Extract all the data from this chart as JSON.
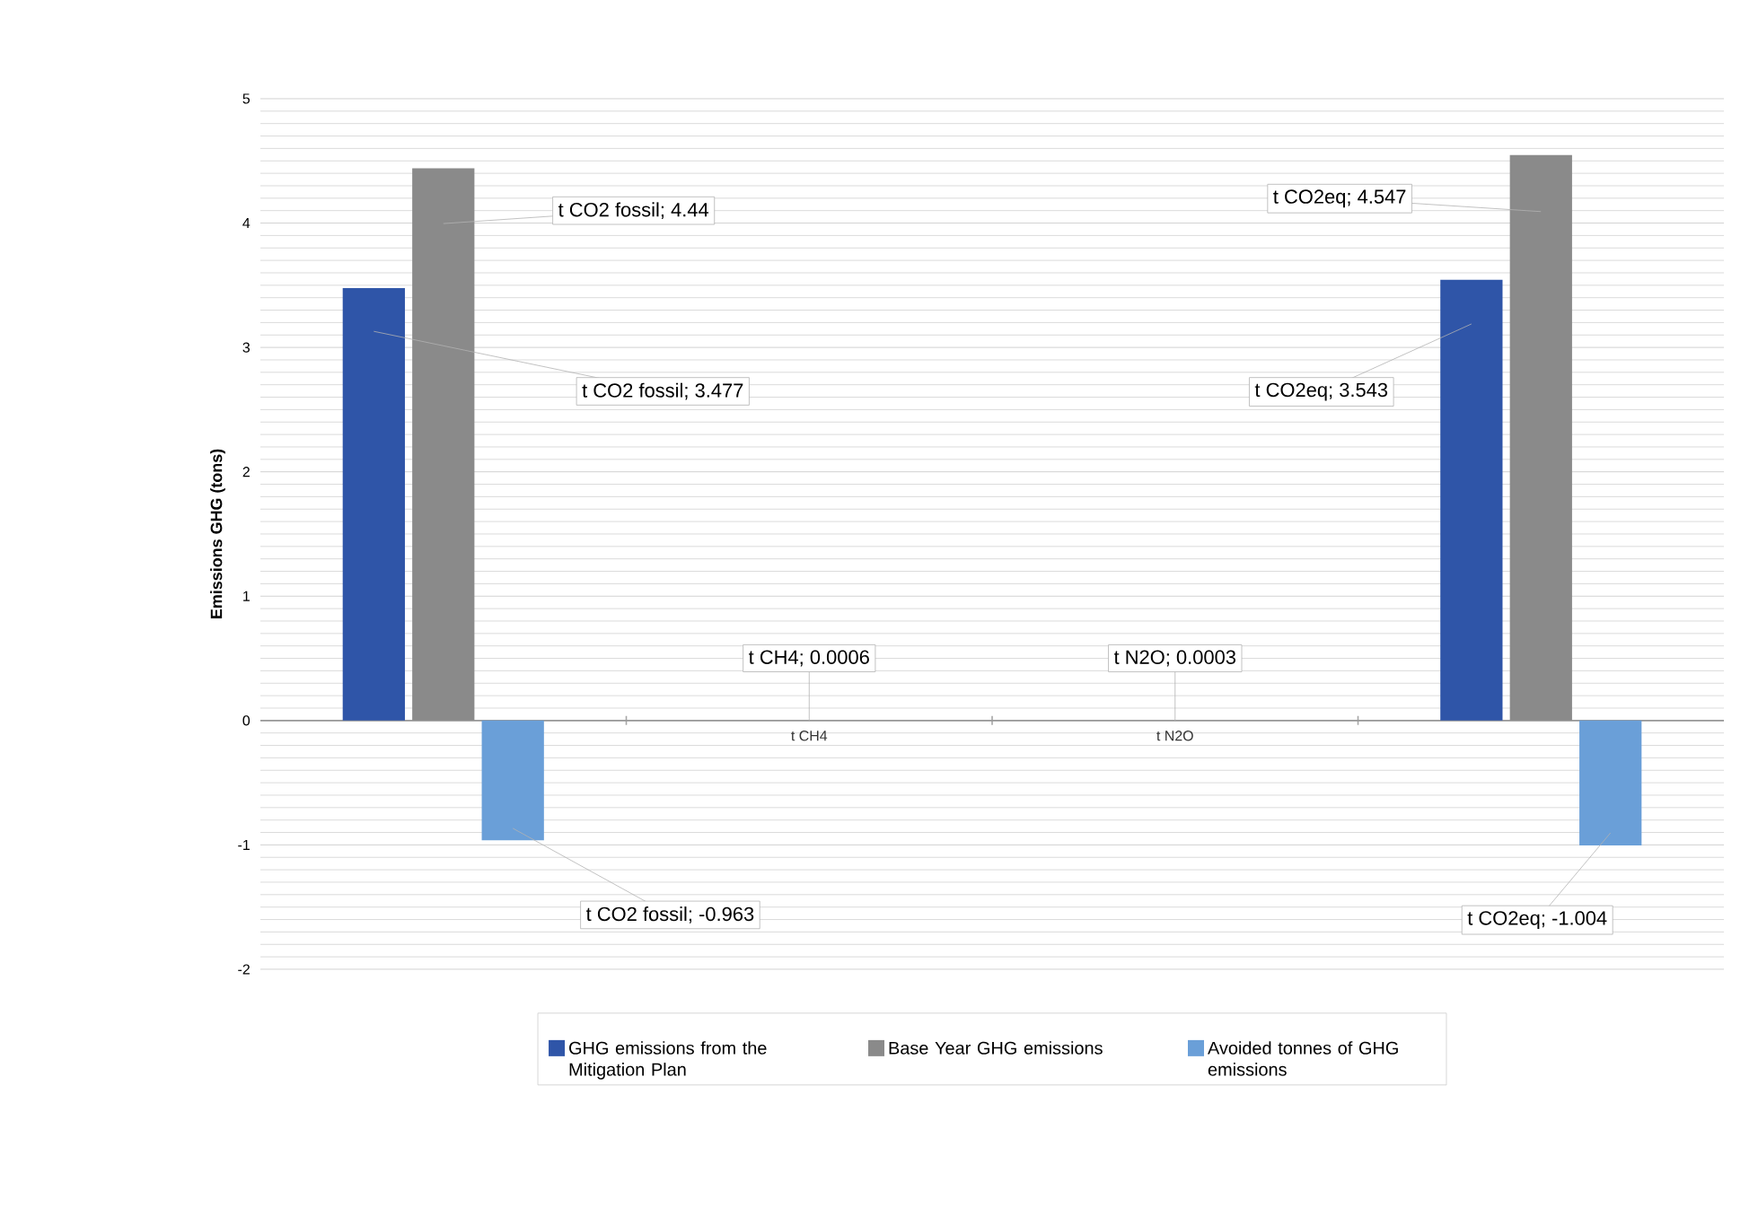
{
  "chart_data": {
    "type": "bar",
    "ylabel": "Emissions  GHG  (tons)",
    "categories": [
      null,
      "t CH4",
      "t N2O",
      null
    ],
    "series": [
      {
        "name": "GHG emissions from the Mitigation Plan",
        "color": "#2f55a8",
        "values": [
          3.477,
          null,
          null,
          3.543
        ],
        "value_labels": [
          "t CO2 fossil; 3.477",
          null,
          null,
          "t CO2eq; 3.543"
        ]
      },
      {
        "name": "Base Year GHG emissions",
        "color": "#8a8a8a",
        "values": [
          4.44,
          0.0006,
          0.0003,
          4.547
        ],
        "value_labels": [
          "t CO2 fossil; 4.44",
          "t CH4; 0.0006",
          "t N2O; 0.0003",
          "t CO2eq; 4.547"
        ]
      },
      {
        "name": "Avoided tonnes of GHG emissions",
        "color": "#6a9fd8",
        "values": [
          -0.963,
          null,
          null,
          -1.004
        ],
        "value_labels": [
          "t CO2 fossil; -0.963",
          null,
          null,
          "t CO2eq; -1.004"
        ]
      }
    ],
    "ylim": [
      -2,
      5
    ],
    "yticks": [
      -2,
      -1,
      0,
      1,
      2,
      3,
      4,
      5
    ],
    "grid": "y",
    "legend": "bottom"
  }
}
